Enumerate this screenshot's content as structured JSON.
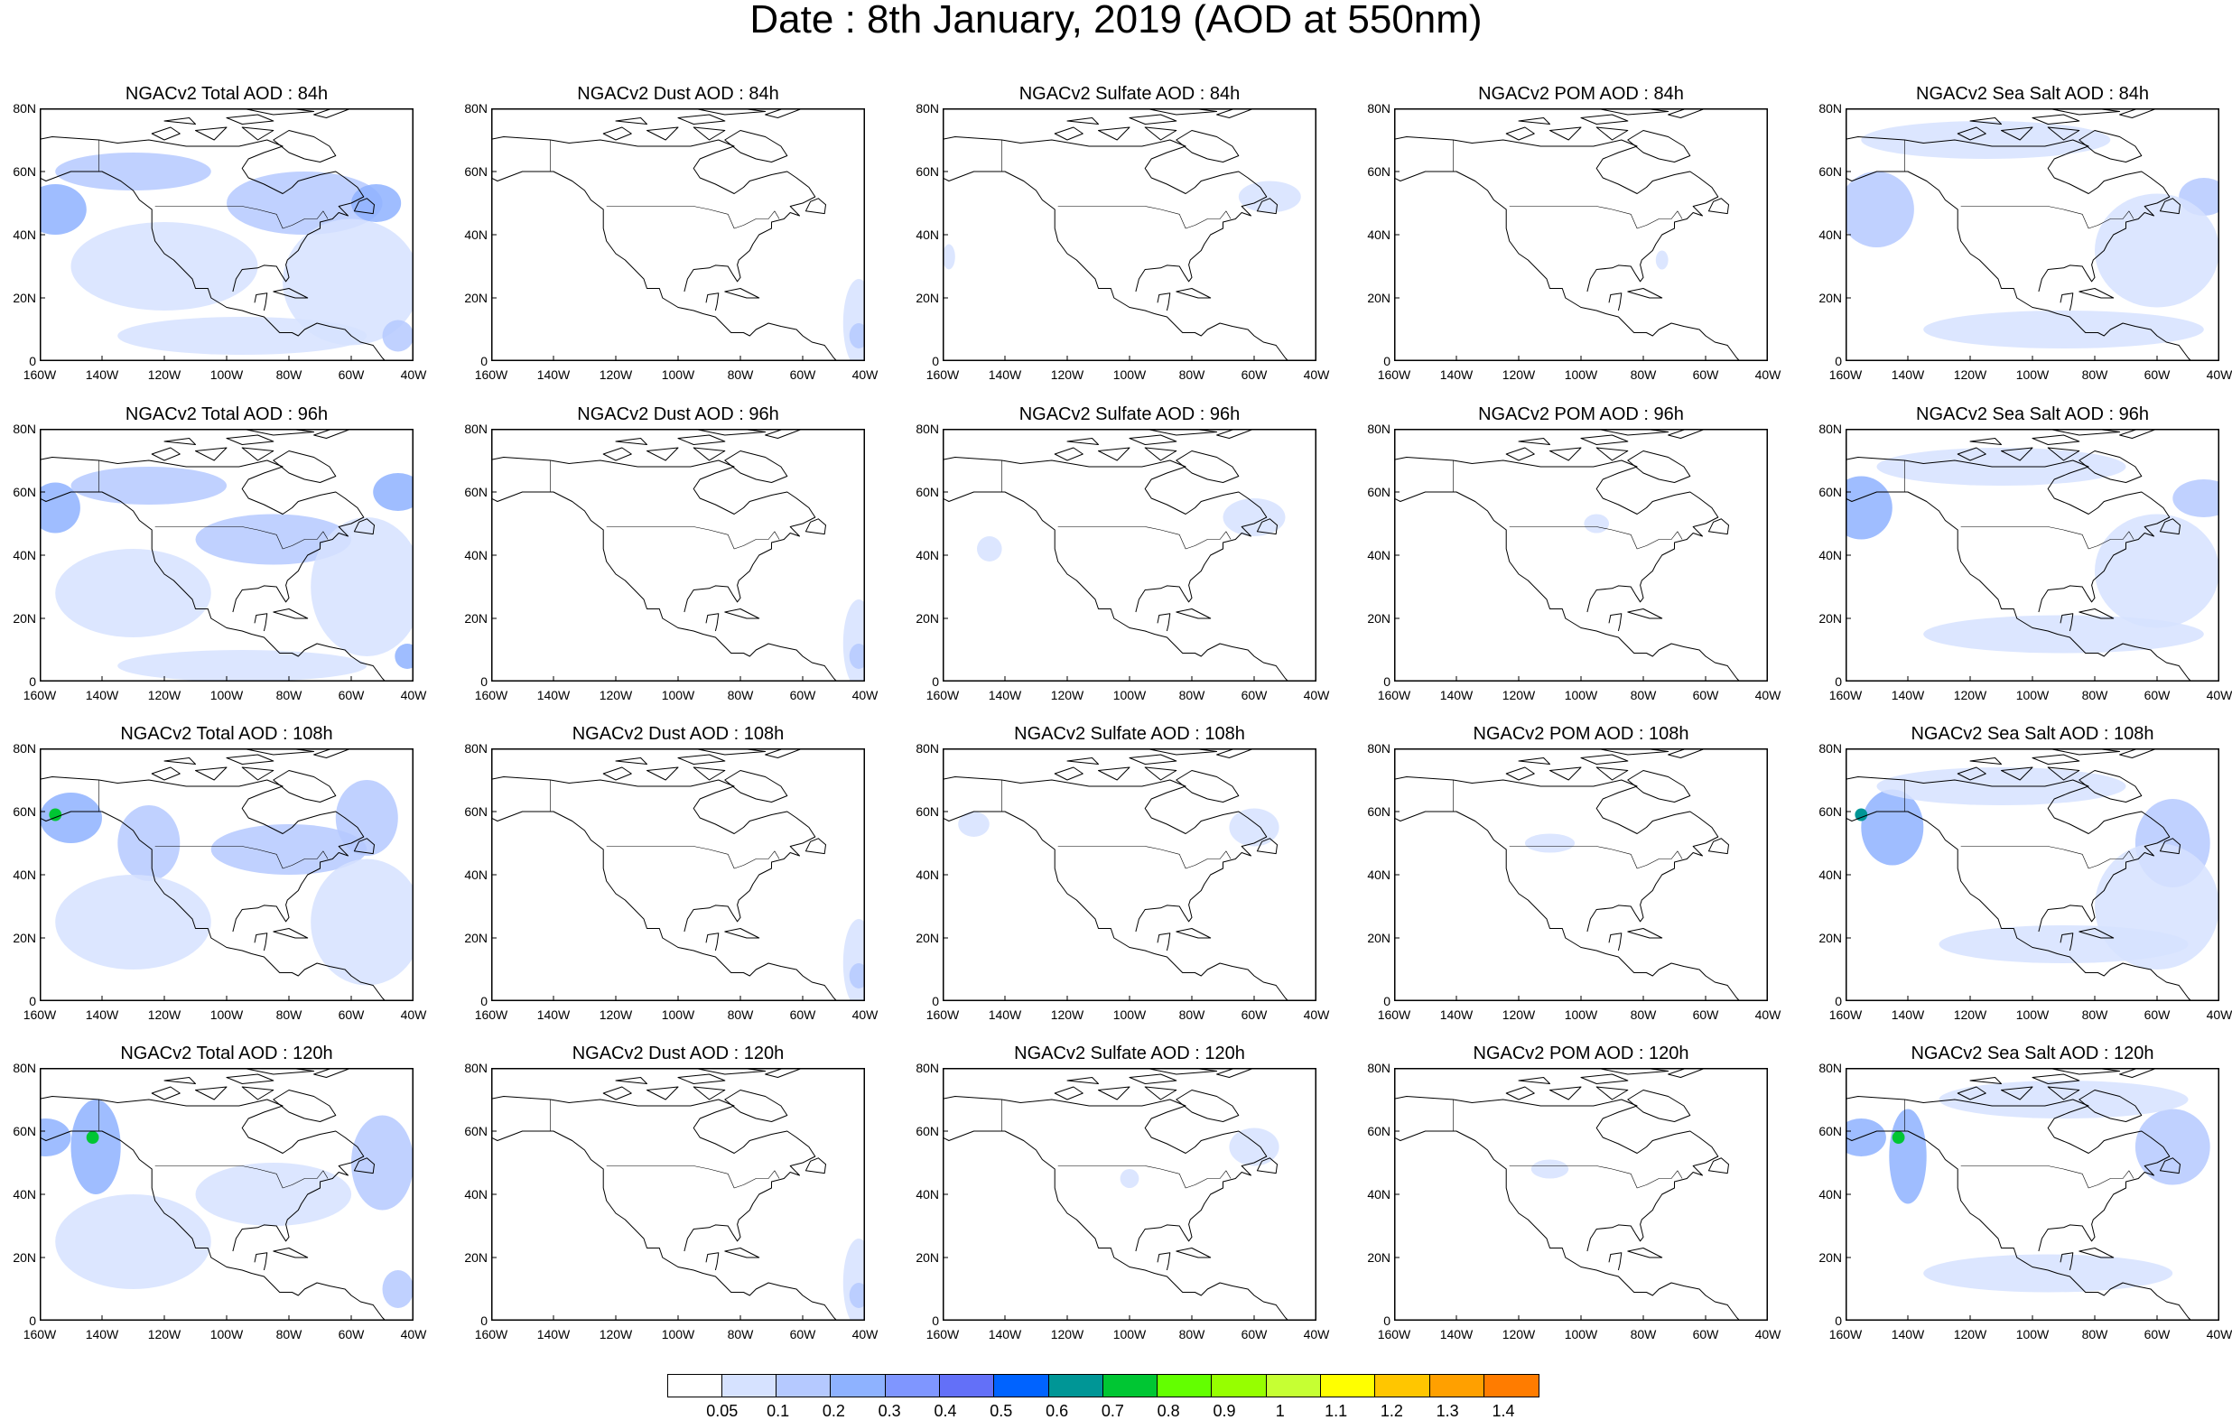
{
  "figure": {
    "title": "Date : 8th January, 2019 (AOD at 550nm)"
  },
  "panels": [
    {
      "title": "NGACv2 Total AOD : 84h"
    },
    {
      "title": "NGACv2 Dust AOD : 84h"
    },
    {
      "title": "NGACv2 Sulfate AOD : 84h"
    },
    {
      "title": "NGACv2 POM AOD : 84h"
    },
    {
      "title": "NGACv2 Sea Salt AOD : 84h"
    },
    {
      "title": "NGACv2 Total AOD : 96h"
    },
    {
      "title": "NGACv2 Dust AOD : 96h"
    },
    {
      "title": "NGACv2 Sulfate AOD : 96h"
    },
    {
      "title": "NGACv2 POM AOD : 96h"
    },
    {
      "title": "NGACv2 Sea Salt AOD : 96h"
    },
    {
      "title": "NGACv2 Total AOD : 108h"
    },
    {
      "title": "NGACv2 Dust AOD : 108h"
    },
    {
      "title": "NGACv2 Sulfate AOD : 108h"
    },
    {
      "title": "NGACv2 POM AOD : 108h"
    },
    {
      "title": "NGACv2 Sea Salt AOD : 108h"
    },
    {
      "title": "NGACv2 Total AOD : 120h"
    },
    {
      "title": "NGACv2 Dust AOD : 120h"
    },
    {
      "title": "NGACv2 Sulfate AOD : 120h"
    },
    {
      "title": "NGACv2 POM AOD : 120h"
    },
    {
      "title": "NGACv2 Sea Salt  AOD : 120h"
    }
  ],
  "chart_data": {
    "type": "heatmap",
    "title": "Date : 8th January, 2019 (AOD at 550nm)",
    "grid": {
      "rows": 4,
      "cols": 5
    },
    "variables": [
      "Total AOD",
      "Dust AOD",
      "Sulfate AOD",
      "POM AOD",
      "Sea Salt AOD"
    ],
    "forecast_hours": [
      "84h",
      "96h",
      "108h",
      "120h"
    ],
    "x_ticks": [
      "160W",
      "140W",
      "120W",
      "100W",
      "80W",
      "60W",
      "40W"
    ],
    "y_ticks": [
      "0",
      "20N",
      "40N",
      "60N",
      "80N"
    ],
    "xlim": [
      -160,
      -40
    ],
    "ylim": [
      0,
      80
    ],
    "grid_lines": false,
    "legend_placement": "bottom",
    "colorbar": {
      "levels": [
        "0.05",
        "0.1",
        "0.2",
        "0.3",
        "0.4",
        "0.5",
        "0.6",
        "0.7",
        "0.8",
        "0.9",
        "1",
        "1.1",
        "1.2",
        "1.3",
        "1.4"
      ],
      "colors": [
        "#ffffff",
        "#d6e2ff",
        "#b5c9ff",
        "#8eb2ff",
        "#7f96ff",
        "#6370f8",
        "#0063ff",
        "#009696",
        "#00c633",
        "#63ff00",
        "#96ff00",
        "#c6ff33",
        "#ffff00",
        "#ffc600",
        "#ffa000",
        "#ff7c00",
        "#ff1900"
      ]
    },
    "panel_features": [
      [
        {
          "lon": -155,
          "lat": 48,
          "rx": 10,
          "ry": 8,
          "level": 3
        },
        {
          "lon": -130,
          "lat": 60,
          "rx": 25,
          "ry": 6,
          "level": 2
        },
        {
          "lon": -75,
          "lat": 50,
          "rx": 25,
          "ry": 10,
          "level": 2
        },
        {
          "lon": -52,
          "lat": 50,
          "rx": 8,
          "ry": 6,
          "level": 3
        },
        {
          "lon": -120,
          "lat": 30,
          "rx": 30,
          "ry": 14,
          "level": 1
        },
        {
          "lon": -60,
          "lat": 25,
          "rx": 22,
          "ry": 20,
          "level": 1
        },
        {
          "lon": -95,
          "lat": 8,
          "rx": 40,
          "ry": 6,
          "level": 1
        },
        {
          "lon": -45,
          "lat": 8,
          "rx": 5,
          "ry": 5,
          "level": 2
        }
      ],
      [
        {
          "lon": -42,
          "lat": 12,
          "rx": 5,
          "ry": 14,
          "level": 1
        },
        {
          "lon": -42,
          "lat": 8,
          "rx": 3,
          "ry": 4,
          "level": 2
        }
      ],
      [
        {
          "lon": -55,
          "lat": 52,
          "rx": 10,
          "ry": 5,
          "level": 1
        },
        {
          "lon": -158,
          "lat": 33,
          "rx": 2,
          "ry": 4,
          "level": 1
        }
      ],
      [
        {
          "lon": -74,
          "lat": 32,
          "rx": 2,
          "ry": 3,
          "level": 1
        }
      ],
      [
        {
          "lon": -150,
          "lat": 48,
          "rx": 12,
          "ry": 12,
          "level": 2
        },
        {
          "lon": -115,
          "lat": 70,
          "rx": 40,
          "ry": 6,
          "level": 1
        },
        {
          "lon": -45,
          "lat": 52,
          "rx": 8,
          "ry": 6,
          "level": 2
        },
        {
          "lon": -60,
          "lat": 35,
          "rx": 20,
          "ry": 18,
          "level": 1
        },
        {
          "lon": -90,
          "lat": 10,
          "rx": 45,
          "ry": 6,
          "level": 1
        }
      ],
      [
        {
          "lon": -155,
          "lat": 55,
          "rx": 8,
          "ry": 8,
          "level": 3
        },
        {
          "lon": -125,
          "lat": 62,
          "rx": 25,
          "ry": 6,
          "level": 2
        },
        {
          "lon": -45,
          "lat": 60,
          "rx": 8,
          "ry": 6,
          "level": 3
        },
        {
          "lon": -85,
          "lat": 45,
          "rx": 25,
          "ry": 8,
          "level": 2
        },
        {
          "lon": -130,
          "lat": 28,
          "rx": 25,
          "ry": 14,
          "level": 1
        },
        {
          "lon": -55,
          "lat": 30,
          "rx": 18,
          "ry": 22,
          "level": 1
        },
        {
          "lon": -42,
          "lat": 8,
          "rx": 4,
          "ry": 4,
          "level": 3
        },
        {
          "lon": -95,
          "lat": 5,
          "rx": 40,
          "ry": 5,
          "level": 1
        }
      ],
      [
        {
          "lon": -42,
          "lat": 12,
          "rx": 5,
          "ry": 14,
          "level": 1
        },
        {
          "lon": -42,
          "lat": 8,
          "rx": 3,
          "ry": 4,
          "level": 2
        }
      ],
      [
        {
          "lon": -60,
          "lat": 52,
          "rx": 10,
          "ry": 6,
          "level": 1
        },
        {
          "lon": -145,
          "lat": 42,
          "rx": 4,
          "ry": 4,
          "level": 1
        }
      ],
      [
        {
          "lon": -95,
          "lat": 50,
          "rx": 4,
          "ry": 3,
          "level": 1
        }
      ],
      [
        {
          "lon": -155,
          "lat": 55,
          "rx": 10,
          "ry": 10,
          "level": 3
        },
        {
          "lon": -110,
          "lat": 68,
          "rx": 40,
          "ry": 6,
          "level": 1
        },
        {
          "lon": -45,
          "lat": 58,
          "rx": 10,
          "ry": 6,
          "level": 2
        },
        {
          "lon": -60,
          "lat": 35,
          "rx": 20,
          "ry": 18,
          "level": 1
        },
        {
          "lon": -90,
          "lat": 15,
          "rx": 45,
          "ry": 6,
          "level": 1
        }
      ],
      [
        {
          "lon": -150,
          "lat": 58,
          "rx": 10,
          "ry": 8,
          "level": 3
        },
        {
          "lon": -155,
          "lat": 59,
          "rx": 2,
          "ry": 2,
          "level": 8
        },
        {
          "lon": -125,
          "lat": 50,
          "rx": 10,
          "ry": 12,
          "level": 2
        },
        {
          "lon": -55,
          "lat": 58,
          "rx": 10,
          "ry": 12,
          "level": 2
        },
        {
          "lon": -80,
          "lat": 48,
          "rx": 25,
          "ry": 8,
          "level": 2
        },
        {
          "lon": -130,
          "lat": 25,
          "rx": 25,
          "ry": 15,
          "level": 1
        },
        {
          "lon": -55,
          "lat": 25,
          "rx": 18,
          "ry": 20,
          "level": 1
        }
      ],
      [
        {
          "lon": -42,
          "lat": 12,
          "rx": 5,
          "ry": 14,
          "level": 1
        },
        {
          "lon": -42,
          "lat": 8,
          "rx": 3,
          "ry": 4,
          "level": 2
        }
      ],
      [
        {
          "lon": -60,
          "lat": 55,
          "rx": 8,
          "ry": 6,
          "level": 1
        },
        {
          "lon": -150,
          "lat": 56,
          "rx": 5,
          "ry": 4,
          "level": 1
        }
      ],
      [
        {
          "lon": -110,
          "lat": 50,
          "rx": 8,
          "ry": 3,
          "level": 1
        }
      ],
      [
        {
          "lon": -145,
          "lat": 55,
          "rx": 10,
          "ry": 12,
          "level": 3
        },
        {
          "lon": -155,
          "lat": 59,
          "rx": 2,
          "ry": 2,
          "level": 7
        },
        {
          "lon": -110,
          "lat": 68,
          "rx": 40,
          "ry": 6,
          "level": 1
        },
        {
          "lon": -55,
          "lat": 50,
          "rx": 12,
          "ry": 14,
          "level": 2
        },
        {
          "lon": -60,
          "lat": 30,
          "rx": 20,
          "ry": 20,
          "level": 1
        },
        {
          "lon": -90,
          "lat": 18,
          "rx": 40,
          "ry": 6,
          "level": 1
        }
      ],
      [
        {
          "lon": -158,
          "lat": 58,
          "rx": 8,
          "ry": 6,
          "level": 3
        },
        {
          "lon": -142,
          "lat": 55,
          "rx": 8,
          "ry": 15,
          "level": 3
        },
        {
          "lon": -143,
          "lat": 58,
          "rx": 2,
          "ry": 2,
          "level": 8
        },
        {
          "lon": -50,
          "lat": 50,
          "rx": 10,
          "ry": 15,
          "level": 2
        },
        {
          "lon": -85,
          "lat": 40,
          "rx": 25,
          "ry": 10,
          "level": 1
        },
        {
          "lon": -130,
          "lat": 25,
          "rx": 25,
          "ry": 15,
          "level": 1
        },
        {
          "lon": -45,
          "lat": 10,
          "rx": 5,
          "ry": 6,
          "level": 2
        }
      ],
      [
        {
          "lon": -42,
          "lat": 12,
          "rx": 5,
          "ry": 14,
          "level": 1
        },
        {
          "lon": -42,
          "lat": 8,
          "rx": 3,
          "ry": 4,
          "level": 2
        }
      ],
      [
        {
          "lon": -60,
          "lat": 55,
          "rx": 8,
          "ry": 6,
          "level": 1
        },
        {
          "lon": -100,
          "lat": 45,
          "rx": 3,
          "ry": 3,
          "level": 1
        }
      ],
      [
        {
          "lon": -110,
          "lat": 48,
          "rx": 6,
          "ry": 3,
          "level": 1
        }
      ],
      [
        {
          "lon": -155,
          "lat": 58,
          "rx": 8,
          "ry": 6,
          "level": 3
        },
        {
          "lon": -140,
          "lat": 52,
          "rx": 6,
          "ry": 15,
          "level": 3
        },
        {
          "lon": -143,
          "lat": 58,
          "rx": 2,
          "ry": 2,
          "level": 8
        },
        {
          "lon": -55,
          "lat": 55,
          "rx": 12,
          "ry": 12,
          "level": 2
        },
        {
          "lon": -90,
          "lat": 70,
          "rx": 40,
          "ry": 6,
          "level": 1
        },
        {
          "lon": -95,
          "lat": 15,
          "rx": 40,
          "ry": 6,
          "level": 1
        }
      ]
    ]
  }
}
